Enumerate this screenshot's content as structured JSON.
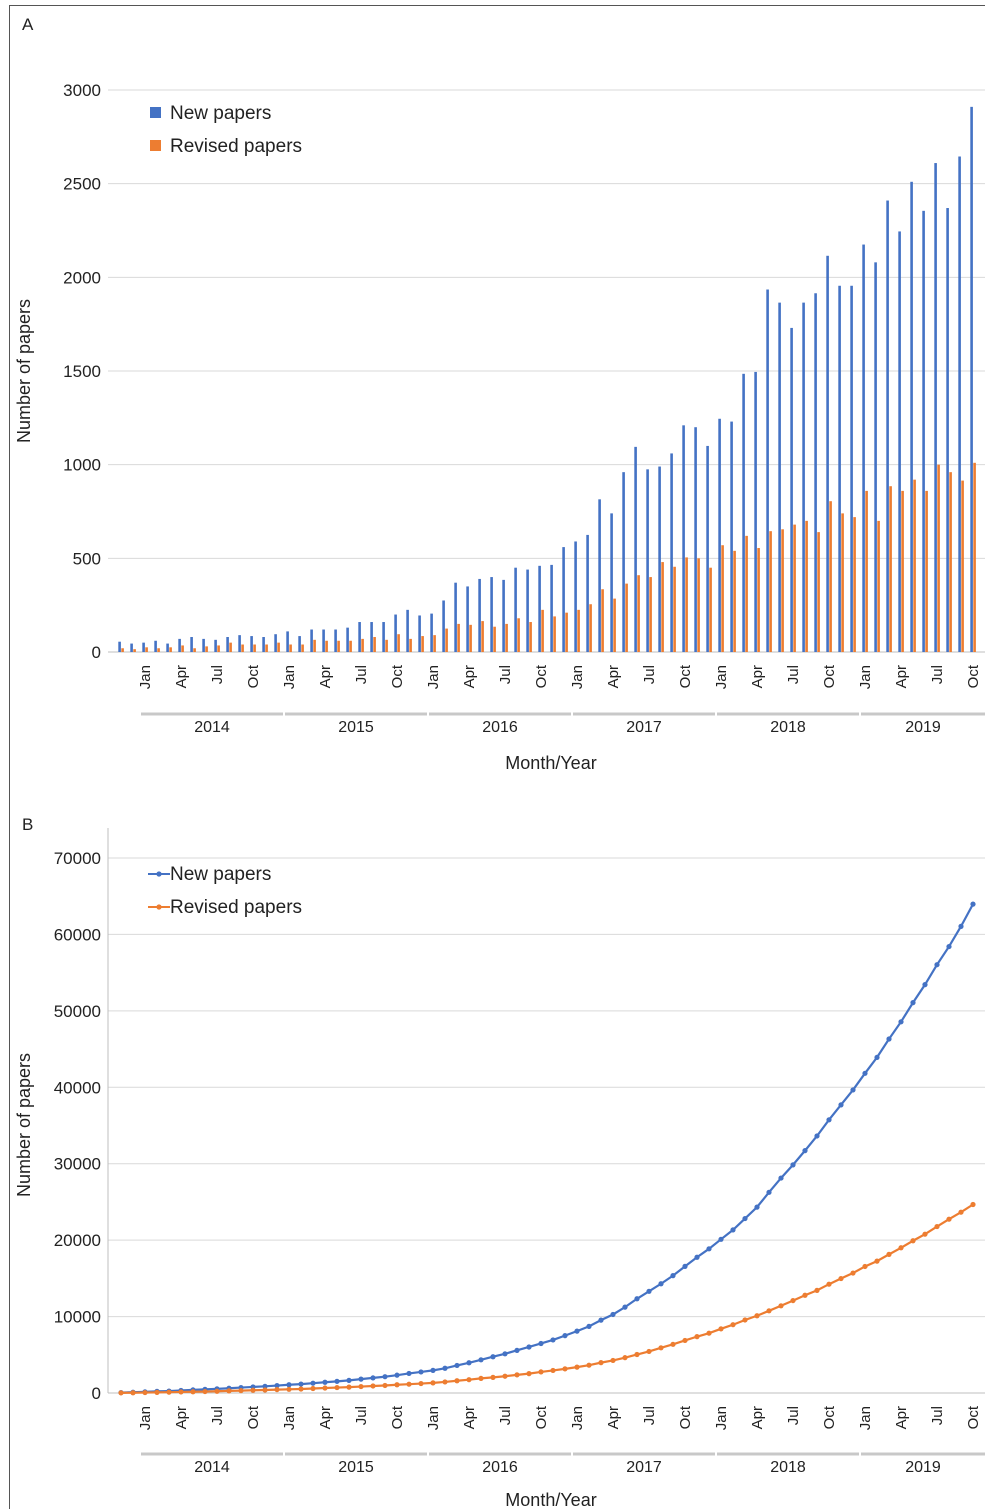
{
  "colors": {
    "new": "#4472C4",
    "revised": "#ED7D31",
    "grid": "#d9d9d9",
    "axis": "#bfbfbf"
  },
  "chart_data": [
    {
      "panel_label": "A",
      "type": "bar",
      "xlabel": "Month/Year",
      "ylabel": "Number of papers",
      "ylim": [
        0,
        3000
      ],
      "yticks": [
        0,
        500,
        1000,
        1500,
        2000,
        2500,
        3000
      ],
      "grid": true,
      "legend": "top-left",
      "years": [
        "2014",
        "2015",
        "2016",
        "2017",
        "2018",
        "2019"
      ],
      "month_tick_labels": [
        "Jan",
        "Apr",
        "Jul",
        "Oct"
      ],
      "categories": [
        "2013-11",
        "2013-12",
        "2014-01",
        "2014-02",
        "2014-03",
        "2014-04",
        "2014-05",
        "2014-06",
        "2014-07",
        "2014-08",
        "2014-09",
        "2014-10",
        "2014-11",
        "2014-12",
        "2015-01",
        "2015-02",
        "2015-03",
        "2015-04",
        "2015-05",
        "2015-06",
        "2015-07",
        "2015-08",
        "2015-09",
        "2015-10",
        "2015-11",
        "2015-12",
        "2016-01",
        "2016-02",
        "2016-03",
        "2016-04",
        "2016-05",
        "2016-06",
        "2016-07",
        "2016-08",
        "2016-09",
        "2016-10",
        "2016-11",
        "2016-12",
        "2017-01",
        "2017-02",
        "2017-03",
        "2017-04",
        "2017-05",
        "2017-06",
        "2017-07",
        "2017-08",
        "2017-09",
        "2017-10",
        "2017-11",
        "2017-12",
        "2018-01",
        "2018-02",
        "2018-03",
        "2018-04",
        "2018-05",
        "2018-06",
        "2018-07",
        "2018-08",
        "2018-09",
        "2018-10",
        "2018-11",
        "2018-12",
        "2019-01",
        "2019-02",
        "2019-03",
        "2019-04",
        "2019-05",
        "2019-06",
        "2019-07",
        "2019-08",
        "2019-09",
        "2019-10"
      ],
      "series": [
        {
          "name": "New papers",
          "values": [
            55,
            45,
            50,
            60,
            45,
            70,
            80,
            70,
            65,
            80,
            90,
            85,
            80,
            95,
            110,
            85,
            120,
            120,
            120,
            130,
            160,
            160,
            160,
            200,
            225,
            195,
            205,
            275,
            370,
            350,
            390,
            400,
            385,
            450,
            440,
            460,
            465,
            560,
            590,
            625,
            815,
            740,
            960,
            1095,
            975,
            990,
            1060,
            1210,
            1200,
            1100,
            1245,
            1230,
            1485,
            1495,
            1935,
            1865,
            1730,
            1865,
            1915,
            2115,
            1955,
            1955,
            2175,
            2080,
            2410,
            2245,
            2510,
            2355,
            2610,
            2370,
            2645,
            2910
          ]
        },
        {
          "name": "Revised papers",
          "values": [
            20,
            15,
            25,
            20,
            25,
            35,
            20,
            30,
            35,
            50,
            40,
            40,
            40,
            50,
            40,
            40,
            65,
            60,
            60,
            60,
            70,
            80,
            65,
            95,
            70,
            85,
            90,
            125,
            150,
            145,
            165,
            135,
            150,
            180,
            160,
            225,
            190,
            210,
            225,
            255,
            335,
            285,
            365,
            410,
            400,
            480,
            455,
            505,
            500,
            450,
            570,
            540,
            620,
            555,
            645,
            655,
            680,
            700,
            640,
            805,
            740,
            720,
            860,
            700,
            885,
            860,
            920,
            860,
            1000,
            960,
            915,
            1010
          ]
        }
      ]
    },
    {
      "panel_label": "B",
      "type": "line",
      "xlabel": "Month/Year",
      "ylabel": "Number of papers",
      "ylim": [
        0,
        70000
      ],
      "yticks": [
        0,
        10000,
        20000,
        30000,
        40000,
        50000,
        60000,
        70000
      ],
      "grid": true,
      "legend": "top-left",
      "years": [
        "2014",
        "2015",
        "2016",
        "2017",
        "2018",
        "2019"
      ],
      "month_tick_labels": [
        "Jan",
        "Apr",
        "Jul",
        "Oct"
      ],
      "categories": [
        "2013-11",
        "2013-12",
        "2014-01",
        "2014-02",
        "2014-03",
        "2014-04",
        "2014-05",
        "2014-06",
        "2014-07",
        "2014-08",
        "2014-09",
        "2014-10",
        "2014-11",
        "2014-12",
        "2015-01",
        "2015-02",
        "2015-03",
        "2015-04",
        "2015-05",
        "2015-06",
        "2015-07",
        "2015-08",
        "2015-09",
        "2015-10",
        "2015-11",
        "2015-12",
        "2016-01",
        "2016-02",
        "2016-03",
        "2016-04",
        "2016-05",
        "2016-06",
        "2016-07",
        "2016-08",
        "2016-09",
        "2016-10",
        "2016-11",
        "2016-12",
        "2017-01",
        "2017-02",
        "2017-03",
        "2017-04",
        "2017-05",
        "2017-06",
        "2017-07",
        "2017-08",
        "2017-09",
        "2017-10",
        "2017-11",
        "2017-12",
        "2018-01",
        "2018-02",
        "2018-03",
        "2018-04",
        "2018-05",
        "2018-06",
        "2018-07",
        "2018-08",
        "2018-09",
        "2018-10",
        "2018-11",
        "2018-12",
        "2019-01",
        "2019-02",
        "2019-03",
        "2019-04",
        "2019-05",
        "2019-06",
        "2019-07",
        "2019-08",
        "2019-09",
        "2019-10"
      ],
      "series": [
        {
          "name": "New papers",
          "values": [
            55,
            100,
            150,
            210,
            255,
            325,
            405,
            475,
            540,
            620,
            710,
            795,
            875,
            970,
            1080,
            1165,
            1285,
            1405,
            1525,
            1655,
            1815,
            1975,
            2135,
            2335,
            2560,
            2755,
            2960,
            3235,
            3605,
            3955,
            4345,
            4745,
            5130,
            5580,
            6020,
            6480,
            6945,
            7505,
            8095,
            8720,
            9535,
            10275,
            11235,
            12330,
            13305,
            14295,
            15355,
            16565,
            17765,
            18865,
            20110,
            21340,
            22825,
            24320,
            26255,
            28120,
            29850,
            31715,
            33630,
            35745,
            37700,
            39655,
            41830,
            43910,
            46320,
            48565,
            51075,
            53430,
            56040,
            58410,
            61055,
            63965
          ]
        },
        {
          "name": "Revised papers",
          "values": [
            20,
            35,
            60,
            80,
            105,
            140,
            160,
            190,
            225,
            275,
            315,
            355,
            395,
            445,
            485,
            525,
            590,
            650,
            710,
            770,
            840,
            920,
            985,
            1080,
            1150,
            1235,
            1325,
            1450,
            1600,
            1745,
            1910,
            2045,
            2195,
            2375,
            2535,
            2760,
            2950,
            3160,
            3385,
            3640,
            3975,
            4260,
            4625,
            5035,
            5435,
            5915,
            6370,
            6875,
            7375,
            7825,
            8395,
            8935,
            9555,
            10110,
            10755,
            11410,
            12090,
            12790,
            13430,
            14235,
            14975,
            15695,
            16555,
            17255,
            18140,
            19000,
            19920,
            20780,
            21780,
            22740,
            23655,
            24665
          ]
        }
      ]
    }
  ]
}
